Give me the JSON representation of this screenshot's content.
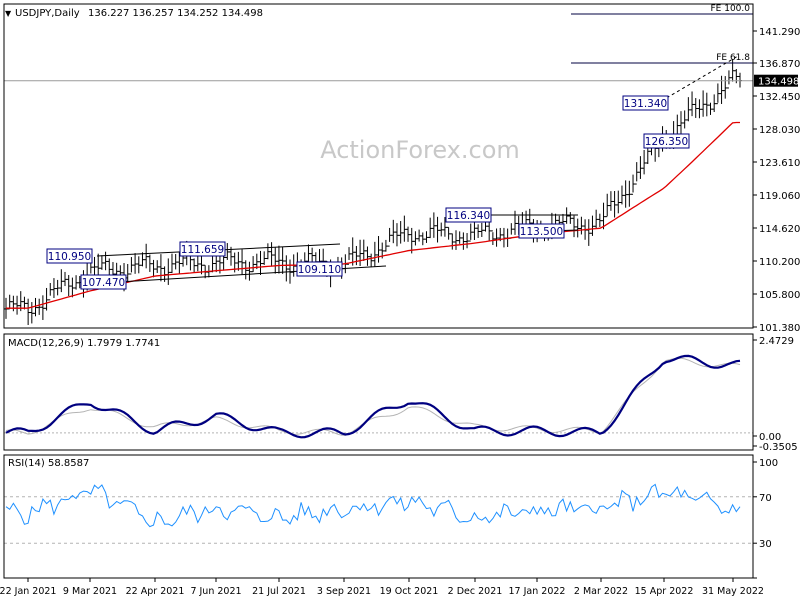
{
  "header": {
    "symbol": "USDJPY,Daily",
    "ohlc": "136.227 136.257 134.252 134.498"
  },
  "watermark": "ActionForex.com",
  "colors": {
    "frame": "#000000",
    "grid": "#b4b4b4",
    "price": "#000000",
    "sma": "#e00000",
    "macd": "#000080",
    "signal": "#b4b4b4",
    "rsi": "#1e90ff",
    "box_border": "#000080",
    "fib": "#000040"
  },
  "chart_data": [
    {
      "type": "line",
      "panel": "price",
      "x": [
        "22 Jan 2021",
        "9 Mar 2021",
        "22 Apr 2021",
        "7 Jun 2021",
        "21 Jul 2021",
        "3 Sep 2021",
        "19 Oct 2021",
        "2 Dec 2021",
        "17 Jan 2022",
        "2 Mar 2022",
        "15 Apr 2022",
        "31 May 2022"
      ],
      "x_ticks": [
        "22 Jan 2021",
        "9 Mar 2021",
        "22 Apr 2021",
        "7 Jun 2021",
        "21 Jul 2021",
        "3 Sep 2021",
        "19 Oct 2021",
        "2 Dec 2021",
        "17 Jan 2022",
        "2 Mar 2022",
        "15 Apr 2022",
        "31 May 2022"
      ],
      "y_ticks": [
        "141.290",
        "136.870",
        "132.450",
        "128.030",
        "123.610",
        "119.060",
        "114.620",
        "110.200",
        "105.800",
        "101.380"
      ],
      "ylim": [
        101.38,
        141.29
      ],
      "series": [
        {
          "values": [
            103.8,
            108.8,
            109.6,
            110.0,
            110.1,
            109.7,
            114.0,
            113.6,
            114.8,
            115.3,
            126.9,
            134.5
          ]
        },
        {
          "values": [
            103.9,
            106.2,
            108.2,
            108.9,
            109.6,
            109.8,
            111.6,
            112.6,
            113.8,
            114.6,
            120.0,
            128.9
          ]
        }
      ],
      "current_price": "134.498",
      "fib_levels": [
        {
          "label": "FE 100.0",
          "value": 143.5
        },
        {
          "label": "FE 61.8",
          "value": 137.0
        }
      ],
      "annotations": [
        "110.950",
        "107.470",
        "111.659",
        "109.110",
        "116.340",
        "113.500",
        "131.340",
        "126.350"
      ]
    },
    {
      "type": "line",
      "panel": "macd",
      "title": "MACD(12,26,9) 1.7979 1.7741",
      "y_ticks": [
        "2.4729",
        "0.00",
        "-0.3505"
      ],
      "ylim": [
        -0.3505,
        2.4729
      ],
      "series": [
        {
          "values": [
            0.0,
            0.85,
            0.05,
            0.45,
            0.0,
            0.0,
            0.9,
            0.05,
            0.05,
            0.0,
            2.0,
            1.8
          ]
        },
        {
          "values": [
            0.0,
            0.7,
            0.15,
            0.35,
            0.05,
            0.0,
            0.7,
            0.15,
            0.1,
            0.05,
            1.95,
            1.77
          ]
        }
      ]
    },
    {
      "type": "line",
      "panel": "rsi",
      "title": "RSI(14) 58.8587",
      "y_ticks": [
        "100",
        "70",
        "30",
        "0"
      ],
      "ylim": [
        0,
        100
      ],
      "series": [
        {
          "values": [
            56,
            75,
            48,
            60,
            52,
            60,
            66,
            52,
            58,
            60,
            74,
            59
          ]
        }
      ]
    }
  ]
}
